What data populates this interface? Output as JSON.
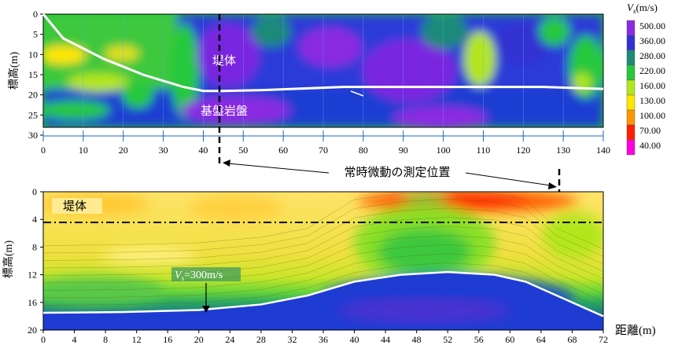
{
  "top_panel": {
    "ylabel": "標高(m)",
    "y_ticks": [
      "0",
      "5",
      "10",
      "15",
      "20",
      "25",
      "30"
    ],
    "x_ticks": [
      "0",
      "10",
      "20",
      "30",
      "40",
      "50",
      "60",
      "70",
      "80",
      "90",
      "100",
      "110",
      "120",
      "130",
      "140"
    ],
    "label_embankment": "堤体",
    "label_bedrock": "基盤岩盤"
  },
  "colorbar": {
    "title_symbol": "V",
    "title_subscript": "s",
    "title_unit": "(m/s)",
    "levels": [
      "500.00",
      "360.00",
      "280.00",
      "220.00",
      "160.00",
      "130.00",
      "100.00",
      "70.00",
      "40.00"
    ],
    "colors": [
      "#8a2be2",
      "#3232d2",
      "#1e8a78",
      "#28c83c",
      "#b4e61e",
      "#ffe600",
      "#ff9600",
      "#ff1e00",
      "#ff00dc"
    ]
  },
  "annotation": {
    "measurement_position": "常時微動の測定位置"
  },
  "bottom_panel": {
    "ylabel": "標高(m)",
    "y_ticks": [
      "0",
      "4",
      "8",
      "12",
      "16",
      "20"
    ],
    "x_ticks": [
      "0",
      "4",
      "8",
      "12",
      "16",
      "20",
      "24",
      "28",
      "32",
      "36",
      "40",
      "44",
      "48",
      "52",
      "56",
      "60",
      "64",
      "68",
      "72"
    ],
    "xlabel": "距離(m)",
    "label_embankment": "堤体",
    "vs_label_symbol": "V",
    "vs_label_subscript": "s",
    "vs_label_value": "=300m/s"
  },
  "chart_data": [
    {
      "type": "heatmap",
      "xlim": [
        0,
        140
      ],
      "ylim": [
        30,
        0
      ],
      "boundary_line": {
        "x": [
          0,
          5,
          15,
          25,
          35,
          40,
          45,
          55,
          75,
          100,
          125,
          140
        ],
        "y": [
          0,
          6,
          11,
          15,
          18,
          19,
          19,
          18.8,
          18,
          18,
          18,
          18.5
        ]
      },
      "measurement_x": 44,
      "colorbar_levels": [
        500,
        360,
        280,
        220,
        160,
        130,
        100,
        70,
        40
      ]
    },
    {
      "type": "heatmap",
      "xlim": [
        0,
        72
      ],
      "ylim": [
        20,
        0
      ],
      "vs300_contour": {
        "x": [
          0,
          10,
          20,
          28,
          34,
          40,
          46,
          52,
          58,
          62,
          66,
          70,
          72
        ],
        "y": [
          17.5,
          17.4,
          17.1,
          16.3,
          15,
          13,
          12,
          11.6,
          12,
          13,
          15,
          17,
          18
        ]
      },
      "horizontal_line_y": 4,
      "measurement_x": 66
    }
  ]
}
